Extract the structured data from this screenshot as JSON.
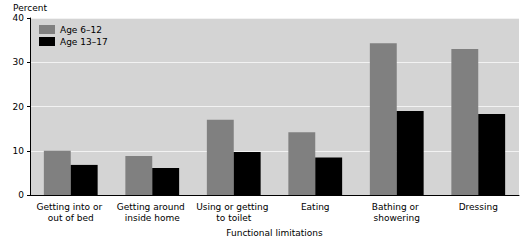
{
  "chart_data": {
    "type": "bar",
    "categories": [
      "Getting into or out of bed",
      "Getting around inside home",
      "Using or getting to toilet",
      "Eating",
      "Bathing or showering",
      "Dressing"
    ],
    "series": [
      {
        "name": "Age 6–12",
        "color": "#808080",
        "values": [
          10,
          8.8,
          17,
          14.2,
          34.3,
          33
        ]
      },
      {
        "name": "Age 13–17",
        "color": "#000000",
        "values": [
          6.8,
          6.1,
          9.7,
          8.5,
          19,
          18.3
        ]
      }
    ],
    "x_label": "Functional limitations",
    "y_label": "Percent",
    "ylim": [
      0,
      40
    ],
    "yticks": [
      0,
      10,
      20,
      30,
      40
    ],
    "grid": true,
    "legend": "upper left"
  }
}
